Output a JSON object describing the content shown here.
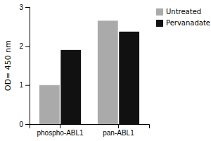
{
  "chart_data": {
    "type": "bar",
    "categories": [
      "phospho-ABL1",
      "pan-ABL1"
    ],
    "series": [
      {
        "name": "Untreated",
        "color": "#aaaaaa",
        "values": [
          1.0,
          2.65
        ]
      },
      {
        "name": "Pervanadate",
        "color": "#111111",
        "values": [
          1.9,
          2.37
        ]
      }
    ],
    "y_label": "OD= 450 nm",
    "ylim": [
      0,
      3
    ],
    "yticks": [
      0,
      1,
      2,
      3
    ],
    "legend": "upper right",
    "grid": false
  }
}
